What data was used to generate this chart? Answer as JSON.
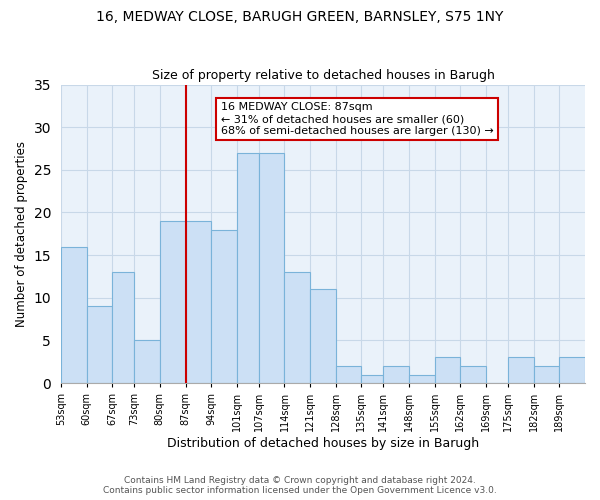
{
  "title": "16, MEDWAY CLOSE, BARUGH GREEN, BARNSLEY, S75 1NY",
  "subtitle": "Size of property relative to detached houses in Barugh",
  "xlabel": "Distribution of detached houses by size in Barugh",
  "ylabel": "Number of detached properties",
  "bin_labels": [
    "53sqm",
    "60sqm",
    "67sqm",
    "73sqm",
    "80sqm",
    "87sqm",
    "94sqm",
    "101sqm",
    "107sqm",
    "114sqm",
    "121sqm",
    "128sqm",
    "135sqm",
    "141sqm",
    "148sqm",
    "155sqm",
    "162sqm",
    "169sqm",
    "175sqm",
    "182sqm",
    "189sqm"
  ],
  "bin_lefts": [
    53,
    60,
    67,
    73,
    80,
    87,
    94,
    101,
    107,
    114,
    121,
    128,
    135,
    141,
    148,
    155,
    162,
    169,
    175,
    182,
    189
  ],
  "bin_rights": [
    60,
    67,
    73,
    80,
    87,
    94,
    101,
    107,
    114,
    121,
    128,
    135,
    141,
    148,
    155,
    162,
    169,
    175,
    182,
    189,
    196
  ],
  "values": [
    16,
    9,
    13,
    5,
    19,
    19,
    18,
    27,
    27,
    13,
    11,
    2,
    1,
    2,
    1,
    3,
    2,
    0,
    3,
    2,
    3
  ],
  "bar_color": "#cce0f5",
  "bar_edgecolor": "#7ab3d9",
  "vline_x": 87,
  "vline_color": "#cc0000",
  "annotation_title": "16 MEDWAY CLOSE: 87sqm",
  "annotation_line1": "← 31% of detached houses are smaller (60)",
  "annotation_line2": "68% of semi-detached houses are larger (130) →",
  "annotation_box_edgecolor": "#cc0000",
  "annotation_box_facecolor": "#ffffff",
  "ylim": [
    0,
    35
  ],
  "yticks": [
    0,
    5,
    10,
    15,
    20,
    25,
    30,
    35
  ],
  "xlim_left": 53,
  "xlim_right": 196,
  "footer1": "Contains HM Land Registry data © Crown copyright and database right 2024.",
  "footer2": "Contains public sector information licensed under the Open Government Licence v3.0.",
  "title_fontsize": 10,
  "subtitle_fontsize": 9,
  "annotation_fontsize": 8,
  "footer_fontsize": 6.5,
  "grid_color": "#c8d8e8",
  "background_color": "#eaf2fa"
}
